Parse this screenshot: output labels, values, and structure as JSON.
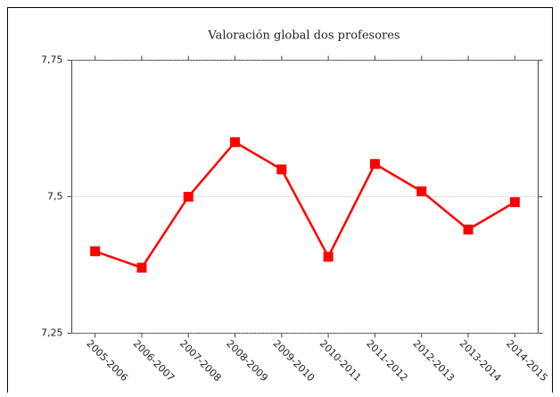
{
  "chart_data": {
    "type": "line",
    "title": "Valoración global dos profesores",
    "categories": [
      "2005-2006",
      "2006-2007",
      "2007-2008",
      "2008-2009",
      "2009-2010",
      "2010-2011",
      "2011-2012",
      "2012-2013",
      "2013-2014",
      "2014-2015"
    ],
    "series": [
      {
        "color": "#ff0000",
        "values": [
          7.4,
          7.37,
          7.5,
          7.6,
          7.55,
          7.39,
          7.56,
          7.51,
          7.44,
          7.49
        ]
      }
    ],
    "ylim": [
      7.25,
      7.75
    ],
    "yticks": [
      {
        "value": 7.25,
        "label": "7,25"
      },
      {
        "value": 7.5,
        "label": "7,5"
      },
      {
        "value": 7.75,
        "label": "7,75"
      }
    ],
    "grid": true
  }
}
